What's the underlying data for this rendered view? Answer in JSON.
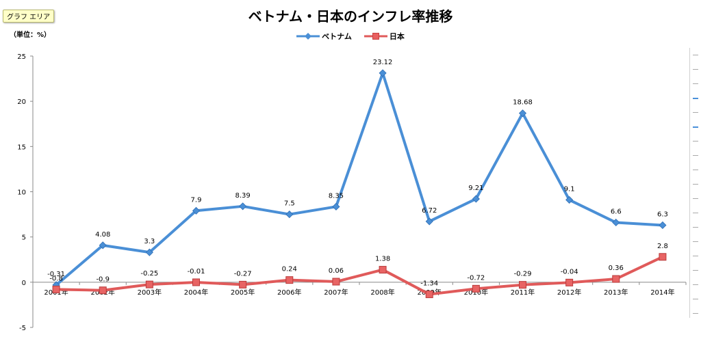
{
  "tooltip": "グラフ エリア",
  "colors": {
    "vietnam": "#4a8fd6",
    "japan": "#e05a5a"
  },
  "chart_data": {
    "type": "line",
    "title": "ベトナム・日本のインフレ率推移",
    "unit_label": "（単位：%）",
    "legend_position": "top",
    "grid": false,
    "categories": [
      "2001年",
      "2002年",
      "2003年",
      "2004年",
      "2005年",
      "2006年",
      "2007年",
      "2008年",
      "2009年",
      "2010年",
      "2011年",
      "2012年",
      "2013年",
      "2014年"
    ],
    "ylim": [
      -5,
      25
    ],
    "yticks": [
      25,
      20,
      15,
      10,
      5,
      0,
      -5
    ],
    "series": [
      {
        "name": "ベトナム",
        "marker": "diamond",
        "values": [
          -0.31,
          4.08,
          3.3,
          7.9,
          8.39,
          7.5,
          8.35,
          23.12,
          6.72,
          9.21,
          18.68,
          9.1,
          6.6,
          6.3
        ],
        "labels": [
          "-0.31",
          "4.08",
          "3.3",
          "7.9",
          "8.39",
          "7.5",
          "8.35",
          "23.12",
          "6.72",
          "9.21",
          "18.68",
          "9.1",
          "6.6",
          "6.3"
        ]
      },
      {
        "name": "日本",
        "marker": "square",
        "values": [
          -0.8,
          -0.9,
          -0.25,
          -0.01,
          -0.27,
          0.24,
          0.06,
          1.38,
          -1.34,
          -0.72,
          -0.29,
          -0.04,
          0.36,
          2.8
        ],
        "labels": [
          "-0.8",
          "-0.9",
          "-0.25",
          "-0.01",
          "-0.27",
          "0.24",
          "0.06",
          "1.38",
          "-1.34",
          "-0.72",
          "-0.29",
          "-0.04",
          "0.36",
          "2.8"
        ]
      }
    ]
  }
}
